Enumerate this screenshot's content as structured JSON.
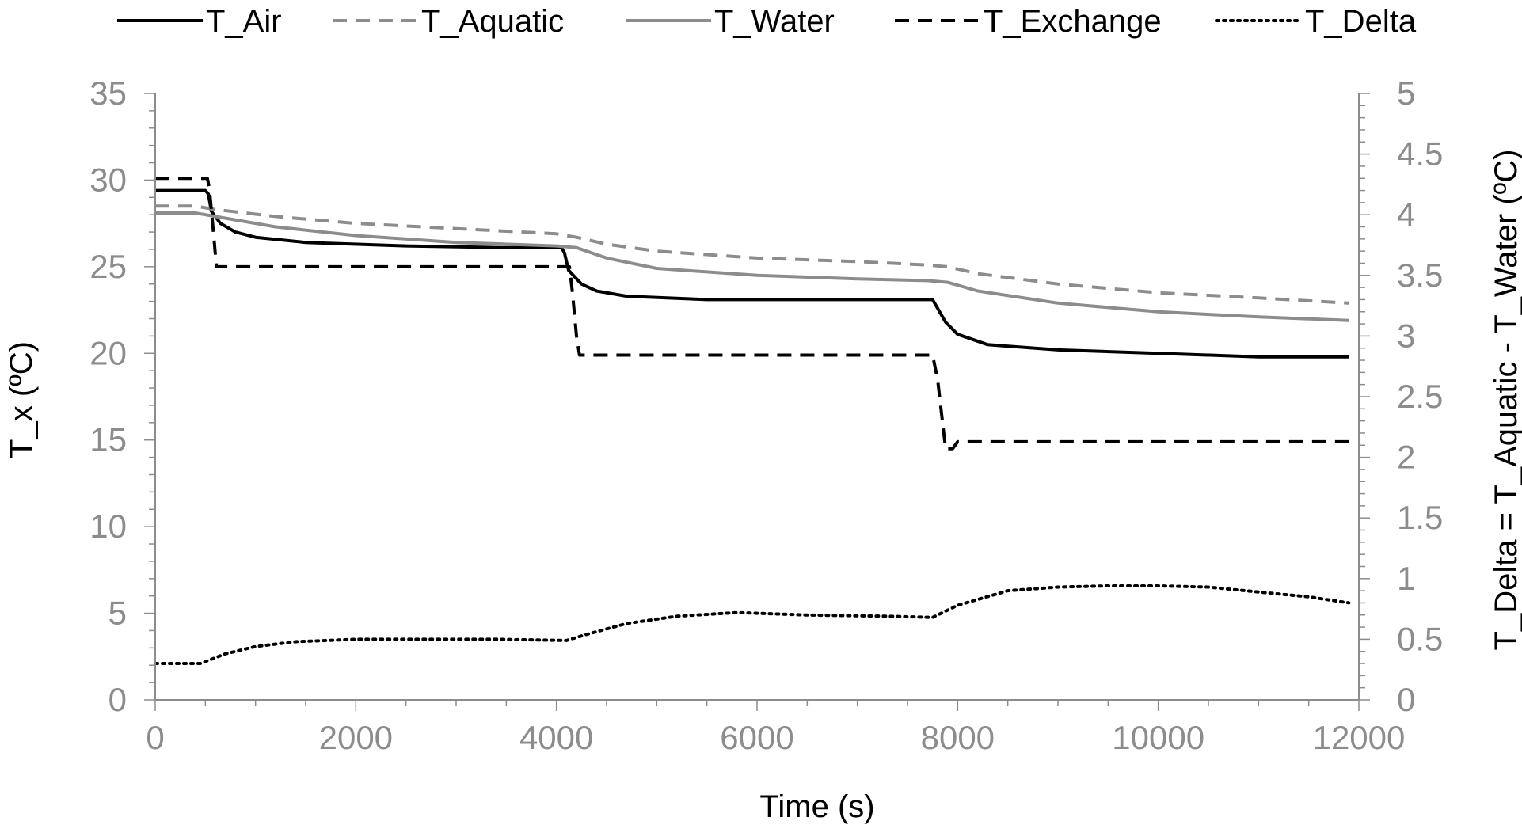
{
  "chart_data": {
    "type": "line",
    "xlabel": "Time (s)",
    "ylabel": "T_x (ºC)",
    "y2label": "T_Delta = T_Aquatic - T_Water (ºC)",
    "xlim": [
      0,
      12000
    ],
    "ylim": [
      0,
      35
    ],
    "y2lim": [
      0,
      5
    ],
    "xticks": [
      "0",
      "2000",
      "4000",
      "6000",
      "8000",
      "10000",
      "12000"
    ],
    "yticks": [
      "0",
      "5",
      "10",
      "15",
      "20",
      "25",
      "30",
      "35"
    ],
    "y2ticks": [
      "0",
      "0.5",
      "1",
      "1.5",
      "2",
      "2.5",
      "3",
      "3.5",
      "4",
      "4.5",
      "5"
    ],
    "grid": false,
    "legend_position": "top",
    "axis_color": "#8c8c8c",
    "series": [
      {
        "name": "T_Air",
        "axis": "left",
        "color": "#000000",
        "style": "solid",
        "points": [
          [
            0,
            29.4
          ],
          [
            500,
            29.4
          ],
          [
            530,
            29.2
          ],
          [
            560,
            28.2
          ],
          [
            650,
            27.5
          ],
          [
            800,
            27.0
          ],
          [
            1000,
            26.7
          ],
          [
            1500,
            26.4
          ],
          [
            2500,
            26.2
          ],
          [
            3500,
            26.1
          ],
          [
            4050,
            26.1
          ],
          [
            4080,
            25.8
          ],
          [
            4120,
            24.8
          ],
          [
            4250,
            24.0
          ],
          [
            4400,
            23.6
          ],
          [
            4700,
            23.3
          ],
          [
            5500,
            23.1
          ],
          [
            6500,
            23.1
          ],
          [
            7700,
            23.1
          ],
          [
            7750,
            23.1
          ],
          [
            7800,
            22.6
          ],
          [
            7880,
            21.8
          ],
          [
            8000,
            21.1
          ],
          [
            8300,
            20.5
          ],
          [
            9000,
            20.2
          ],
          [
            10000,
            20.0
          ],
          [
            11000,
            19.8
          ],
          [
            11900,
            19.8
          ]
        ]
      },
      {
        "name": "T_Aquatic",
        "axis": "left",
        "color": "#8c8c8c",
        "style": "dashed",
        "points": [
          [
            0,
            28.5
          ],
          [
            400,
            28.5
          ],
          [
            600,
            28.3
          ],
          [
            1200,
            27.9
          ],
          [
            2000,
            27.5
          ],
          [
            3000,
            27.2
          ],
          [
            4000,
            26.9
          ],
          [
            4200,
            26.7
          ],
          [
            4500,
            26.3
          ],
          [
            5000,
            25.9
          ],
          [
            6000,
            25.5
          ],
          [
            7000,
            25.3
          ],
          [
            7700,
            25.1
          ],
          [
            7900,
            25.0
          ],
          [
            8200,
            24.6
          ],
          [
            9000,
            24.0
          ],
          [
            10000,
            23.5
          ],
          [
            11000,
            23.2
          ],
          [
            11900,
            22.9
          ]
        ]
      },
      {
        "name": "T_Water",
        "axis": "left",
        "color": "#8c8c8c",
        "style": "solid",
        "points": [
          [
            0,
            28.1
          ],
          [
            400,
            28.1
          ],
          [
            600,
            27.9
          ],
          [
            1200,
            27.3
          ],
          [
            2000,
            26.8
          ],
          [
            3000,
            26.4
          ],
          [
            4000,
            26.2
          ],
          [
            4200,
            26.1
          ],
          [
            4500,
            25.5
          ],
          [
            5000,
            24.9
          ],
          [
            6000,
            24.5
          ],
          [
            7000,
            24.3
          ],
          [
            7700,
            24.2
          ],
          [
            7900,
            24.1
          ],
          [
            8200,
            23.6
          ],
          [
            9000,
            22.9
          ],
          [
            10000,
            22.4
          ],
          [
            11000,
            22.1
          ],
          [
            11900,
            21.9
          ]
        ]
      },
      {
        "name": "T_Exchange",
        "axis": "left",
        "color": "#000000",
        "style": "dashed",
        "points": [
          [
            0,
            30.1
          ],
          [
            520,
            30.1
          ],
          [
            540,
            29.5
          ],
          [
            580,
            27.0
          ],
          [
            610,
            25.0
          ],
          [
            4130,
            25.0
          ],
          [
            4160,
            23.5
          ],
          [
            4200,
            21.0
          ],
          [
            4230,
            19.9
          ],
          [
            7750,
            19.9
          ],
          [
            7800,
            18.5
          ],
          [
            7850,
            16.0
          ],
          [
            7880,
            14.5
          ],
          [
            7950,
            14.5
          ],
          [
            8000,
            14.9
          ],
          [
            11900,
            14.9
          ]
        ]
      },
      {
        "name": "T_Delta",
        "axis": "right",
        "color": "#000000",
        "style": "dotted",
        "points": [
          [
            0,
            0.3
          ],
          [
            450,
            0.3
          ],
          [
            700,
            0.38
          ],
          [
            1000,
            0.44
          ],
          [
            1400,
            0.48
          ],
          [
            2000,
            0.5
          ],
          [
            2600,
            0.5
          ],
          [
            3400,
            0.5
          ],
          [
            4100,
            0.49
          ],
          [
            4300,
            0.54
          ],
          [
            4700,
            0.63
          ],
          [
            5200,
            0.69
          ],
          [
            5800,
            0.72
          ],
          [
            6500,
            0.7
          ],
          [
            7300,
            0.69
          ],
          [
            7750,
            0.68
          ],
          [
            8000,
            0.78
          ],
          [
            8500,
            0.9
          ],
          [
            9000,
            0.93
          ],
          [
            9500,
            0.94
          ],
          [
            10000,
            0.94
          ],
          [
            10500,
            0.93
          ],
          [
            11000,
            0.89
          ],
          [
            11500,
            0.85
          ],
          [
            11900,
            0.8
          ]
        ]
      }
    ]
  }
}
